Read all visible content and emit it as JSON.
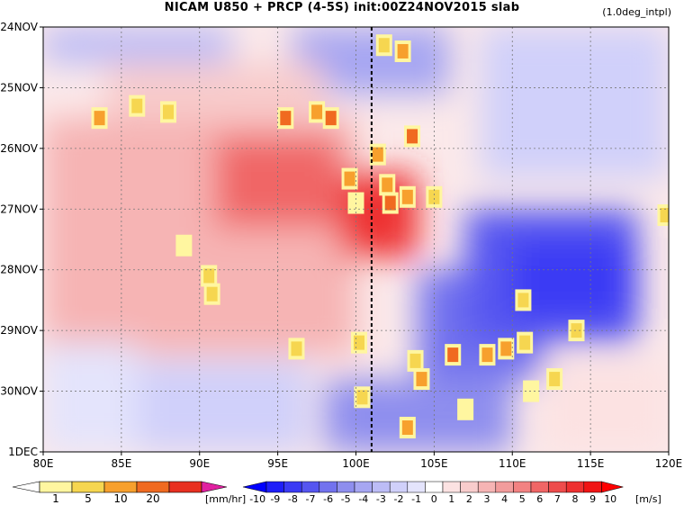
{
  "header": {
    "title": "NICAM   U850  +  PRCP  (4-5S)  init:00Z24NOV2015  slab",
    "note": "(1.0deg_intpl)"
  },
  "chart_data": {
    "type": "heatmap",
    "title": "NICAM U850 + PRCP (4-5S) init:00Z24NOV2015 slab",
    "xlim": [
      80,
      120
    ],
    "x_ticks": [
      "80E",
      "85E",
      "90E",
      "95E",
      "100E",
      "105E",
      "110E",
      "115E",
      "120E"
    ],
    "y_ticks": [
      "24NOV",
      "25NOV",
      "26NOV",
      "27NOV",
      "28NOV",
      "29NOV",
      "30NOV",
      "1DEC"
    ],
    "grid": true,
    "reference_line_lon": 101,
    "u850_regions": [
      {
        "lon": [
          80,
          92
        ],
        "t": [
          24.0,
          24.6
        ],
        "u": -3
      },
      {
        "lon": [
          96,
          106
        ],
        "t": [
          24.0,
          25.1
        ],
        "u": -4
      },
      {
        "lon": [
          108,
          120
        ],
        "t": [
          24.0,
          26.5
        ],
        "u": -2
      },
      {
        "lon": [
          84,
          98
        ],
        "t": [
          24.6,
          25.5
        ],
        "u": 2
      },
      {
        "lon": [
          80,
          100
        ],
        "t": [
          25.5,
          29.4
        ],
        "u": 3
      },
      {
        "lon": [
          91,
          99
        ],
        "t": [
          25.8,
          27.3
        ],
        "u": 6
      },
      {
        "lon": [
          99,
          104
        ],
        "t": [
          26.4,
          27.8
        ],
        "u": 8
      },
      {
        "lon": [
          80,
          86
        ],
        "t": [
          29.2,
          31.0
        ],
        "u": -1
      },
      {
        "lon": [
          86,
          97
        ],
        "t": [
          29.5,
          31.0
        ],
        "u": -2
      },
      {
        "lon": [
          98,
          110
        ],
        "t": [
          29.8,
          31.0
        ],
        "u": -5
      },
      {
        "lon": [
          104,
          112
        ],
        "t": [
          28.0,
          29.8
        ],
        "u": -6
      },
      {
        "lon": [
          107,
          118
        ],
        "t": [
          27.0,
          29.2
        ],
        "u": -7
      },
      {
        "lon": [
          110,
          118
        ],
        "t": [
          27.5,
          28.8
        ],
        "u": -8
      },
      {
        "lon": [
          112,
          120
        ],
        "t": [
          29.5,
          31.0
        ],
        "u": 1
      }
    ],
    "precip_cells": [
      {
        "lon": 83.6,
        "t": 25.5,
        "r": 10
      },
      {
        "lon": 86.0,
        "t": 25.3,
        "r": 8
      },
      {
        "lon": 88.0,
        "t": 25.4,
        "r": 5
      },
      {
        "lon": 89.0,
        "t": 27.6,
        "r": 3
      },
      {
        "lon": 90.6,
        "t": 28.1,
        "r": 5
      },
      {
        "lon": 90.8,
        "t": 28.4,
        "r": 8
      },
      {
        "lon": 95.5,
        "t": 25.5,
        "r": 20
      },
      {
        "lon": 97.5,
        "t": 25.4,
        "r": 10
      },
      {
        "lon": 98.4,
        "t": 25.5,
        "r": 20
      },
      {
        "lon": 99.6,
        "t": 26.5,
        "r": 10
      },
      {
        "lon": 101.4,
        "t": 26.1,
        "r": 10
      },
      {
        "lon": 102.0,
        "t": 26.6,
        "r": 10
      },
      {
        "lon": 102.2,
        "t": 26.9,
        "r": 20
      },
      {
        "lon": 103.3,
        "t": 26.8,
        "r": 10
      },
      {
        "lon": 105.0,
        "t": 26.8,
        "r": 5
      },
      {
        "lon": 103.6,
        "t": 25.8,
        "r": 20
      },
      {
        "lon": 101.8,
        "t": 24.3,
        "r": 5
      },
      {
        "lon": 103.0,
        "t": 24.4,
        "r": 10
      },
      {
        "lon": 100.0,
        "t": 26.9,
        "r": 3
      },
      {
        "lon": 96.2,
        "t": 29.3,
        "r": 5
      },
      {
        "lon": 100.2,
        "t": 29.2,
        "r": 5
      },
      {
        "lon": 100.4,
        "t": 30.1,
        "r": 5
      },
      {
        "lon": 103.8,
        "t": 29.5,
        "r": 5
      },
      {
        "lon": 104.2,
        "t": 29.8,
        "r": 10
      },
      {
        "lon": 106.2,
        "t": 29.4,
        "r": 20
      },
      {
        "lon": 108.4,
        "t": 29.4,
        "r": 10
      },
      {
        "lon": 109.6,
        "t": 29.3,
        "r": 10
      },
      {
        "lon": 110.8,
        "t": 29.2,
        "r": 8
      },
      {
        "lon": 114.1,
        "t": 29.0,
        "r": 5
      },
      {
        "lon": 110.7,
        "t": 28.5,
        "r": 5
      },
      {
        "lon": 111.2,
        "t": 30.0,
        "r": 3
      },
      {
        "lon": 112.7,
        "t": 29.8,
        "r": 5
      },
      {
        "lon": 103.3,
        "t": 30.6,
        "r": 10
      },
      {
        "lon": 107.0,
        "t": 30.3,
        "r": 3
      },
      {
        "lon": 119.8,
        "t": 27.1,
        "r": 5
      }
    ],
    "precip_colorbar": {
      "ticks": [
        "1",
        "5",
        "10",
        "20"
      ],
      "unit": "[mm/hr]",
      "colors": [
        "#ffffff",
        "#fff6a0",
        "#f6d650",
        "#f7a02d",
        "#f06a20",
        "#e83020",
        "#b80018",
        "#e020a0"
      ]
    },
    "u850_colorbar": {
      "ticks": [
        "-10",
        "-9",
        "-8",
        "-7",
        "-6",
        "-5",
        "-4",
        "-3",
        "-2",
        "-1",
        "0",
        "1",
        "2",
        "3",
        "4",
        "5",
        "6",
        "7",
        "8",
        "9",
        "10"
      ],
      "unit": "[m/s]",
      "colors": [
        "#0000ff",
        "#1e1ef8",
        "#3a3af4",
        "#5656f0",
        "#7272ee",
        "#8e8eee",
        "#a6a6f2",
        "#bcbcf6",
        "#d0d0fa",
        "#e4e4fc",
        "#ffffff",
        "#fce2e2",
        "#f8cccc",
        "#f6b4b4",
        "#f29c9c",
        "#f28282",
        "#f06666",
        "#ee4c4c",
        "#ee3030",
        "#f01414",
        "#ff0000"
      ]
    }
  }
}
